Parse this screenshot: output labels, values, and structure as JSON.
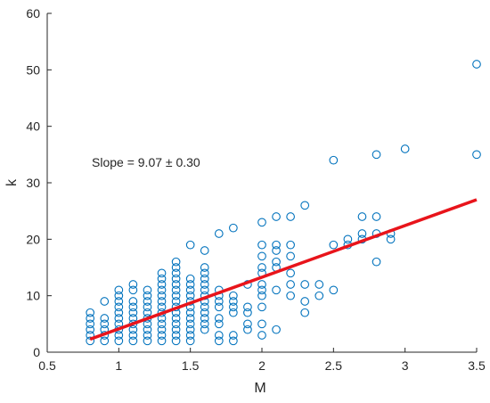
{
  "chart_data": {
    "type": "scatter",
    "title": "",
    "xlabel": "M",
    "ylabel": "k",
    "xlim": [
      0.5,
      3.5
    ],
    "ylim": [
      0,
      60
    ],
    "x_ticks": [
      0.5,
      1,
      1.5,
      2,
      2.5,
      3,
      3.5
    ],
    "x_tick_labels": [
      "0.5",
      "1",
      "1.5",
      "2",
      "2.5",
      "3",
      "3.5"
    ],
    "y_ticks": [
      0,
      10,
      20,
      30,
      40,
      50,
      60
    ],
    "y_tick_labels": [
      "0",
      "10",
      "20",
      "30",
      "40",
      "50",
      "60"
    ],
    "grid": false,
    "annotation": "Slope = 9.07 ± 0.30",
    "colors": {
      "points": "#0072BD",
      "fit": "#E8141B",
      "axis": "#262626"
    },
    "points": [
      [
        0.8,
        2
      ],
      [
        0.8,
        3
      ],
      [
        0.8,
        4
      ],
      [
        0.8,
        5
      ],
      [
        0.8,
        6
      ],
      [
        0.8,
        7
      ],
      [
        0.9,
        2
      ],
      [
        0.9,
        3
      ],
      [
        0.9,
        4
      ],
      [
        0.9,
        5
      ],
      [
        0.9,
        6
      ],
      [
        0.9,
        9
      ],
      [
        1.0,
        2
      ],
      [
        1.0,
        3
      ],
      [
        1.0,
        4
      ],
      [
        1.0,
        5
      ],
      [
        1.0,
        6
      ],
      [
        1.0,
        7
      ],
      [
        1.0,
        8
      ],
      [
        1.0,
        9
      ],
      [
        1.0,
        10
      ],
      [
        1.0,
        11
      ],
      [
        1.1,
        2
      ],
      [
        1.1,
        3
      ],
      [
        1.1,
        4
      ],
      [
        1.1,
        5
      ],
      [
        1.1,
        6
      ],
      [
        1.1,
        7
      ],
      [
        1.1,
        8
      ],
      [
        1.1,
        9
      ],
      [
        1.1,
        11
      ],
      [
        1.1,
        12
      ],
      [
        1.2,
        2
      ],
      [
        1.2,
        3
      ],
      [
        1.2,
        4
      ],
      [
        1.2,
        5
      ],
      [
        1.2,
        6
      ],
      [
        1.2,
        7
      ],
      [
        1.2,
        8
      ],
      [
        1.2,
        9
      ],
      [
        1.2,
        10
      ],
      [
        1.2,
        11
      ],
      [
        1.3,
        2
      ],
      [
        1.3,
        3
      ],
      [
        1.3,
        4
      ],
      [
        1.3,
        5
      ],
      [
        1.3,
        6
      ],
      [
        1.3,
        7
      ],
      [
        1.3,
        8
      ],
      [
        1.3,
        9
      ],
      [
        1.3,
        10
      ],
      [
        1.3,
        11
      ],
      [
        1.3,
        12
      ],
      [
        1.3,
        13
      ],
      [
        1.3,
        14
      ],
      [
        1.4,
        2
      ],
      [
        1.4,
        3
      ],
      [
        1.4,
        4
      ],
      [
        1.4,
        5
      ],
      [
        1.4,
        6
      ],
      [
        1.4,
        7
      ],
      [
        1.4,
        8
      ],
      [
        1.4,
        9
      ],
      [
        1.4,
        10
      ],
      [
        1.4,
        11
      ],
      [
        1.4,
        12
      ],
      [
        1.4,
        13
      ],
      [
        1.4,
        14
      ],
      [
        1.4,
        15
      ],
      [
        1.4,
        16
      ],
      [
        1.5,
        2
      ],
      [
        1.5,
        3
      ],
      [
        1.5,
        4
      ],
      [
        1.5,
        5
      ],
      [
        1.5,
        6
      ],
      [
        1.5,
        7
      ],
      [
        1.5,
        8
      ],
      [
        1.5,
        9
      ],
      [
        1.5,
        10
      ],
      [
        1.5,
        11
      ],
      [
        1.5,
        12
      ],
      [
        1.5,
        13
      ],
      [
        1.5,
        19
      ],
      [
        1.6,
        4
      ],
      [
        1.6,
        5
      ],
      [
        1.6,
        6
      ],
      [
        1.6,
        7
      ],
      [
        1.6,
        8
      ],
      [
        1.6,
        9
      ],
      [
        1.6,
        10
      ],
      [
        1.6,
        11
      ],
      [
        1.6,
        12
      ],
      [
        1.6,
        13
      ],
      [
        1.6,
        14
      ],
      [
        1.6,
        15
      ],
      [
        1.6,
        18
      ],
      [
        1.7,
        2
      ],
      [
        1.7,
        3
      ],
      [
        1.7,
        5
      ],
      [
        1.7,
        6
      ],
      [
        1.7,
        8
      ],
      [
        1.7,
        9
      ],
      [
        1.7,
        10
      ],
      [
        1.7,
        11
      ],
      [
        1.7,
        21
      ],
      [
        1.8,
        2
      ],
      [
        1.8,
        3
      ],
      [
        1.8,
        7
      ],
      [
        1.8,
        8
      ],
      [
        1.8,
        9
      ],
      [
        1.8,
        10
      ],
      [
        1.8,
        22
      ],
      [
        1.9,
        4
      ],
      [
        1.9,
        5
      ],
      [
        1.9,
        7
      ],
      [
        1.9,
        8
      ],
      [
        1.9,
        12
      ],
      [
        2.0,
        3
      ],
      [
        2.0,
        5
      ],
      [
        2.0,
        8
      ],
      [
        2.0,
        10
      ],
      [
        2.0,
        11
      ],
      [
        2.0,
        12
      ],
      [
        2.0,
        14
      ],
      [
        2.0,
        15
      ],
      [
        2.0,
        17
      ],
      [
        2.0,
        19
      ],
      [
        2.0,
        23
      ],
      [
        2.1,
        4
      ],
      [
        2.1,
        11
      ],
      [
        2.1,
        15
      ],
      [
        2.1,
        16
      ],
      [
        2.1,
        18
      ],
      [
        2.1,
        19
      ],
      [
        2.1,
        24
      ],
      [
        2.2,
        10
      ],
      [
        2.2,
        12
      ],
      [
        2.2,
        14
      ],
      [
        2.2,
        17
      ],
      [
        2.2,
        19
      ],
      [
        2.2,
        24
      ],
      [
        2.3,
        7
      ],
      [
        2.3,
        9
      ],
      [
        2.3,
        12
      ],
      [
        2.3,
        26
      ],
      [
        2.4,
        10
      ],
      [
        2.4,
        12
      ],
      [
        2.5,
        11
      ],
      [
        2.5,
        19
      ],
      [
        2.5,
        34
      ],
      [
        2.6,
        19
      ],
      [
        2.6,
        20
      ],
      [
        2.7,
        20
      ],
      [
        2.7,
        21
      ],
      [
        2.7,
        24
      ],
      [
        2.8,
        16
      ],
      [
        2.8,
        21
      ],
      [
        2.8,
        24
      ],
      [
        2.8,
        35
      ],
      [
        2.9,
        20
      ],
      [
        2.9,
        21
      ],
      [
        3.0,
        36
      ],
      [
        3.5,
        35
      ],
      [
        3.5,
        51
      ]
    ],
    "fit_line": {
      "x": [
        0.8,
        3.5
      ],
      "y": [
        2.3,
        27
      ]
    }
  }
}
